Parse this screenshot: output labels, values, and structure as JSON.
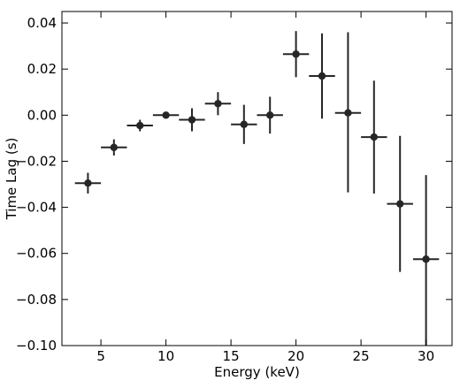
{
  "chart_data": {
    "type": "scatter",
    "title": "",
    "xlabel": "Energy (keV)",
    "ylabel": "Time Lag (s)",
    "xlim": [
      2,
      32
    ],
    "ylim": [
      -0.1,
      0.045
    ],
    "xticks": [
      5,
      10,
      15,
      20,
      25,
      30
    ],
    "xtick_labels": [
      "5",
      "10",
      "15",
      "20",
      "25",
      "30"
    ],
    "yticks": [
      -0.1,
      -0.08,
      -0.06,
      -0.04,
      -0.02,
      0.0,
      0.02,
      0.04
    ],
    "ytick_labels": [
      "−0.10",
      "−0.08",
      "−0.06",
      "−0.04",
      "−0.02",
      "0.00",
      "0.02",
      "0.04"
    ],
    "grid": false,
    "legend": false,
    "marker_color": "#262626",
    "points": [
      {
        "x": 4,
        "y": -0.0295,
        "xerr": 1,
        "yerr_low": 0.0045,
        "yerr_high": 0.0045
      },
      {
        "x": 6,
        "y": -0.014,
        "xerr": 1,
        "yerr_low": 0.0035,
        "yerr_high": 0.0035
      },
      {
        "x": 8,
        "y": -0.0045,
        "xerr": 1,
        "yerr_low": 0.0025,
        "yerr_high": 0.0025
      },
      {
        "x": 10,
        "y": 0.0,
        "xerr": 1,
        "yerr_low": 0.001,
        "yerr_high": 0.001
      },
      {
        "x": 12,
        "y": -0.002,
        "xerr": 1,
        "yerr_low": 0.005,
        "yerr_high": 0.005
      },
      {
        "x": 14,
        "y": 0.005,
        "xerr": 1,
        "yerr_low": 0.005,
        "yerr_high": 0.005
      },
      {
        "x": 16,
        "y": -0.004,
        "xerr": 1,
        "yerr_low": 0.0085,
        "yerr_high": 0.0085
      },
      {
        "x": 18,
        "y": 0.0,
        "xerr": 1,
        "yerr_low": 0.008,
        "yerr_high": 0.008
      },
      {
        "x": 20,
        "y": 0.0265,
        "xerr": 1,
        "yerr_low": 0.01,
        "yerr_high": 0.01
      },
      {
        "x": 22,
        "y": 0.017,
        "xerr": 1,
        "yerr_low": 0.0185,
        "yerr_high": 0.0185
      },
      {
        "x": 24,
        "y": 0.001,
        "xerr": 1,
        "yerr_low": 0.0345,
        "yerr_high": 0.035
      },
      {
        "x": 26,
        "y": -0.0095,
        "xerr": 1,
        "yerr_low": 0.0245,
        "yerr_high": 0.0245
      },
      {
        "x": 28,
        "y": -0.0385,
        "xerr": 1,
        "yerr_low": 0.0295,
        "yerr_high": 0.0295
      },
      {
        "x": 30,
        "y": -0.0625,
        "xerr": 1,
        "yerr_low": 0.0375,
        "yerr_high": 0.0365
      }
    ]
  }
}
